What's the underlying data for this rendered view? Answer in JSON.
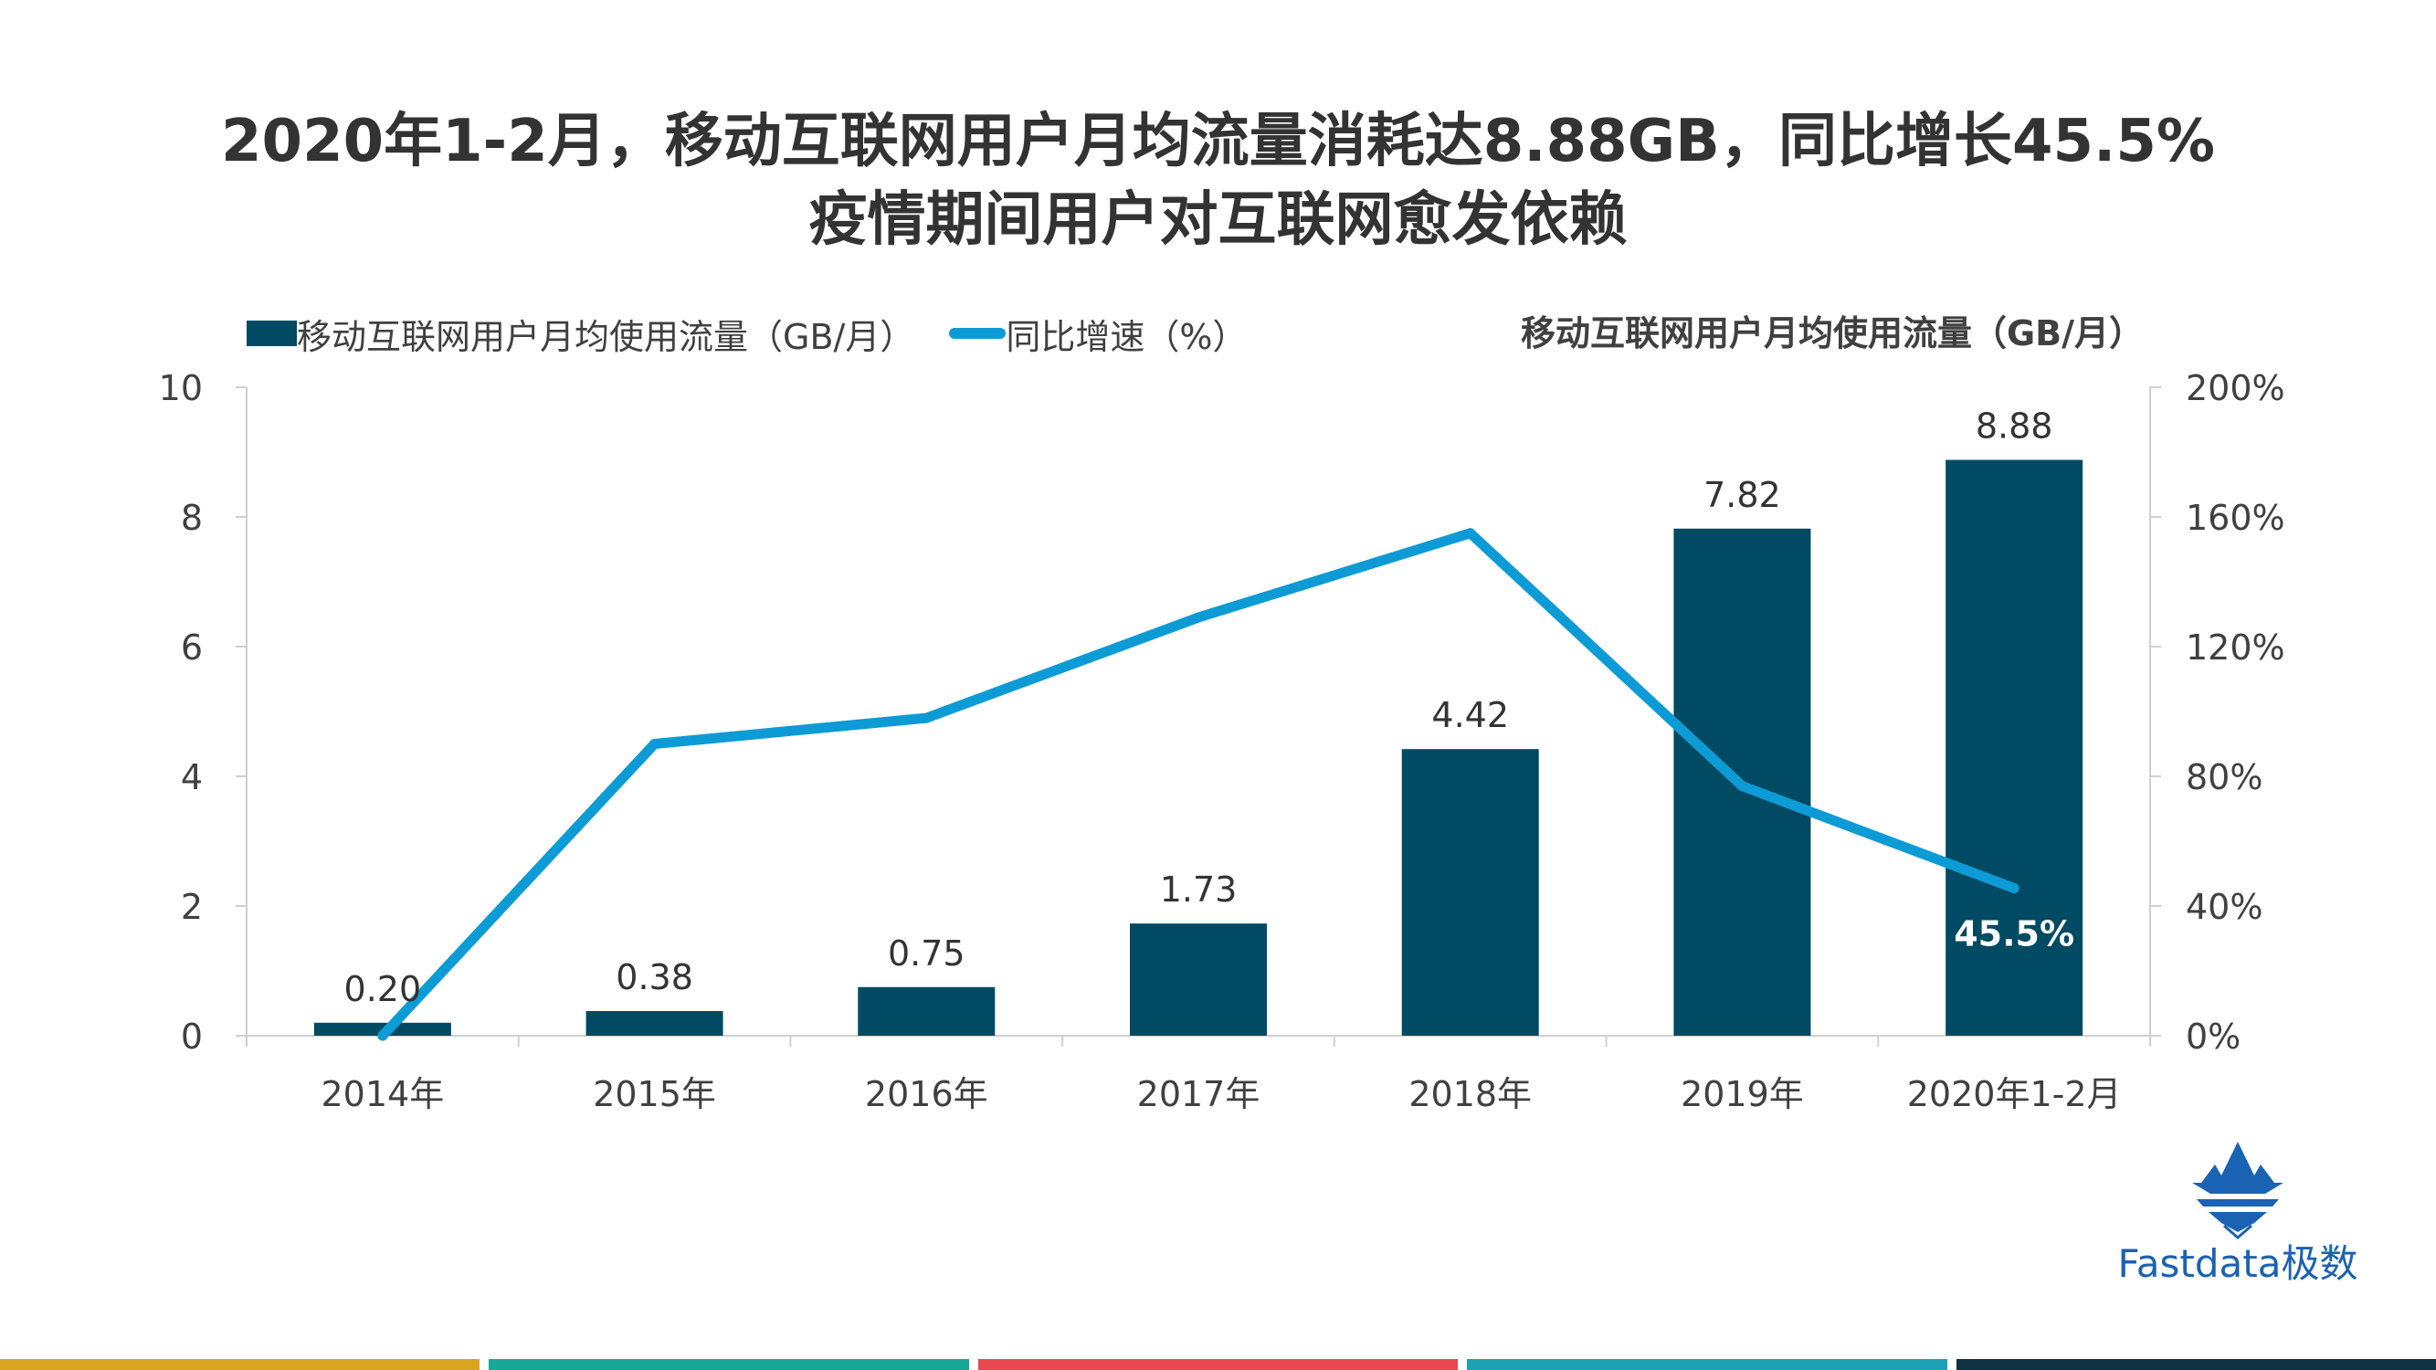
{
  "title": {
    "line1": "2020年1-2月，移动互联网用户月均流量消耗达8.88GB，同比增长45.5%",
    "line2": "疫情期间用户对互联网愈发依赖"
  },
  "legend": {
    "bar_label": "移动互联网用户月均使用流量（GB/月）",
    "line_label": "同比增速（%）"
  },
  "right_axis_title": "移动互联网用户月均使用流量（GB/月）",
  "chart_data": {
    "type": "bar",
    "categories": [
      "2014年",
      "2015年",
      "2016年",
      "2017年",
      "2018年",
      "2019年",
      "2020年1-2月"
    ],
    "series": [
      {
        "name": "移动互联网用户月均使用流量（GB/月）",
        "type": "bar",
        "axis": "left",
        "values": [
          0.2,
          0.38,
          0.75,
          1.73,
          4.42,
          7.82,
          8.88
        ],
        "data_labels": [
          "0.20",
          "0.38",
          "0.75",
          "1.73",
          "4.42",
          "7.82",
          "8.88"
        ],
        "color": "#004a63"
      },
      {
        "name": "同比增速（%）",
        "type": "line",
        "axis": "right",
        "values": [
          0,
          90,
          98,
          129,
          155,
          77,
          45.5
        ],
        "data_labels": [
          "",
          "",
          "",
          "",
          "",
          "",
          "45.5%"
        ],
        "color": "#0d9bd6"
      }
    ],
    "left_axis": {
      "ylim": [
        0,
        10
      ],
      "ticks": [
        "0",
        "2",
        "4",
        "6",
        "8",
        "10"
      ]
    },
    "right_axis": {
      "ylim": [
        0,
        200
      ],
      "ticks": [
        "0%",
        "40%",
        "80%",
        "120%",
        "160%",
        "200%"
      ]
    },
    "grid": false,
    "legend_position": "top-left"
  },
  "logo": {
    "text": "Fastdata极数",
    "color": "#1a62b4"
  },
  "footer_colors": [
    "#d9a520",
    "#17a89a",
    "#e8474f",
    "#1ba2b4",
    "#0f3344"
  ]
}
